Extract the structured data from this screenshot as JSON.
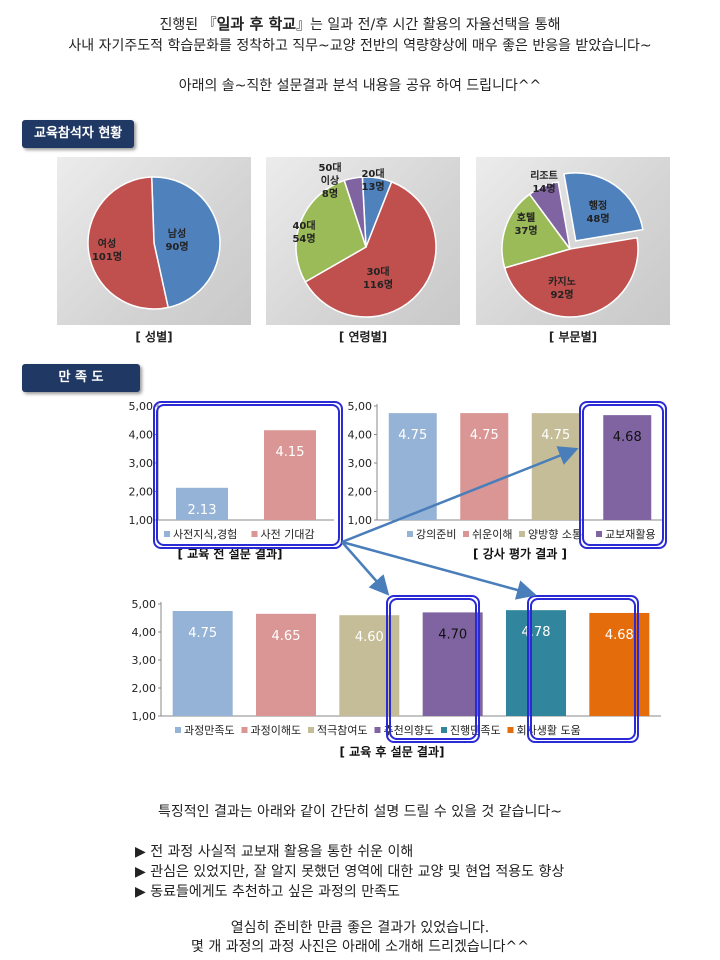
{
  "intro": {
    "line1_pre": "진행된 『",
    "line1_bold": "일과 후 학교",
    "line1_post": "』는 일과 전/후 시간 활용의 자율선택을 통해",
    "line2": "사내 자기주도적 학습문화를 정착하고 직무~교양 전반의 역량향상에 매우 좋은 반응을 받았습니다~",
    "line3": "아래의 솔~직한 설문결과 분석 내용을 공유 하여 드립니다^^"
  },
  "sections": {
    "participants": "교육참석자 현황",
    "satisfaction": "만 족 도"
  },
  "colors": {
    "blue": "#4f81bd",
    "red": "#c0504d",
    "green": "#9bbb59",
    "purple": "#8064a2",
    "bar_blue": "#95b3d7",
    "bar_pink": "#d99694",
    "bar_tan": "#c4bd97",
    "bar_purple": "#8064a2",
    "bar_teal": "#31859c",
    "bar_orange": "#e46c0a",
    "highlight": "#2b2bd6",
    "arrow": "#4a7ebb"
  },
  "chart_data": [
    {
      "id": "gender",
      "type": "pie",
      "caption": "[ 성별]",
      "slices": [
        {
          "label": "남성",
          "sub": "90명",
          "value": 90,
          "color": "#4f81bd"
        },
        {
          "label": "여성",
          "sub": "101명",
          "value": 101,
          "color": "#c0504d"
        }
      ]
    },
    {
      "id": "age",
      "type": "pie",
      "caption": "[ 연령별]",
      "slices": [
        {
          "label": "20대",
          "sub": "13명",
          "value": 13,
          "color": "#4f81bd"
        },
        {
          "label": "30대",
          "sub": "116명",
          "value": 116,
          "color": "#c0504d"
        },
        {
          "label": "40대",
          "sub": "54명",
          "value": 54,
          "color": "#9bbb59"
        },
        {
          "label": "50대 이상",
          "sub": "8명",
          "value": 8,
          "color": "#8064a2"
        }
      ]
    },
    {
      "id": "dept",
      "type": "pie",
      "caption": "[ 부문별]",
      "slices": [
        {
          "label": "행정",
          "sub": "48명",
          "value": 48,
          "color": "#4f81bd"
        },
        {
          "label": "카지노",
          "sub": "92명",
          "value": 92,
          "color": "#c0504d"
        },
        {
          "label": "호텔",
          "sub": "37명",
          "value": 37,
          "color": "#9bbb59"
        },
        {
          "label": "리조트",
          "sub": "14명",
          "value": 14,
          "color": "#8064a2"
        }
      ]
    },
    {
      "id": "pre",
      "type": "bar",
      "title": "[ 교육 전 설문 결과]",
      "ylim": [
        1,
        5
      ],
      "yticks": [
        "1,00",
        "2,00",
        "3,00",
        "4,00",
        "5,00"
      ],
      "categories": [
        "사전지식,경험",
        "사전 기대감"
      ],
      "values": [
        2.13,
        4.15
      ],
      "value_labels": [
        "2.13",
        "4.15"
      ],
      "colors": [
        "#95b3d7",
        "#d99694"
      ]
    },
    {
      "id": "instructor",
      "type": "bar",
      "title": "[ 강사 평가 결과 ]",
      "ylim": [
        1,
        5
      ],
      "yticks": [
        "1,00",
        "2,00",
        "3,00",
        "4,00",
        "5,00"
      ],
      "categories": [
        "강의준비",
        "쉬운이해",
        "양방향 소통",
        "교보재활용"
      ],
      "values": [
        4.75,
        4.75,
        4.75,
        4.68
      ],
      "value_labels": [
        "4.75",
        "4.75",
        "4.75",
        "4.68"
      ],
      "colors": [
        "#95b3d7",
        "#d99694",
        "#c4bd97",
        "#8064a2"
      ]
    },
    {
      "id": "post",
      "type": "bar",
      "title": "[ 교육 후 설문 결과]",
      "ylim": [
        1,
        5
      ],
      "yticks": [
        "1,00",
        "2,00",
        "3,00",
        "4,00",
        "5,00"
      ],
      "categories": [
        "과정만족도",
        "과정이해도",
        "적극참여도",
        "추천의향도",
        "진행만족도",
        "회사생활 도움"
      ],
      "values": [
        4.75,
        4.65,
        4.6,
        4.7,
        4.78,
        4.68
      ],
      "value_labels": [
        "4.75",
        "4.65",
        "4.60",
        "4.70",
        "4.78",
        "4.68"
      ],
      "colors": [
        "#95b3d7",
        "#d99694",
        "#c4bd97",
        "#8064a2",
        "#31859c",
        "#e46c0a"
      ]
    }
  ],
  "closing": {
    "summary": "특징적인 결과는 아래와 같이 간단히 설명 드릴 수 있을 것 같습니다~",
    "bullets": [
      "▶ 전 과정 사실적 교보재 활용을 통한 쉬운 이해",
      "▶ 관심은 있었지만, 잘 알지 못했던 영역에 대한 교양 및 현업 적용도 향상",
      "▶ 동료들에게도 추천하고 싶은 과정의 만족도"
    ],
    "end1": "열심히 준비한 만큼 좋은 결과가 있었습니다.",
    "end2": "몇 개 과정의 과정 사진은 아래에 소개해 드리겠습니다^^"
  }
}
